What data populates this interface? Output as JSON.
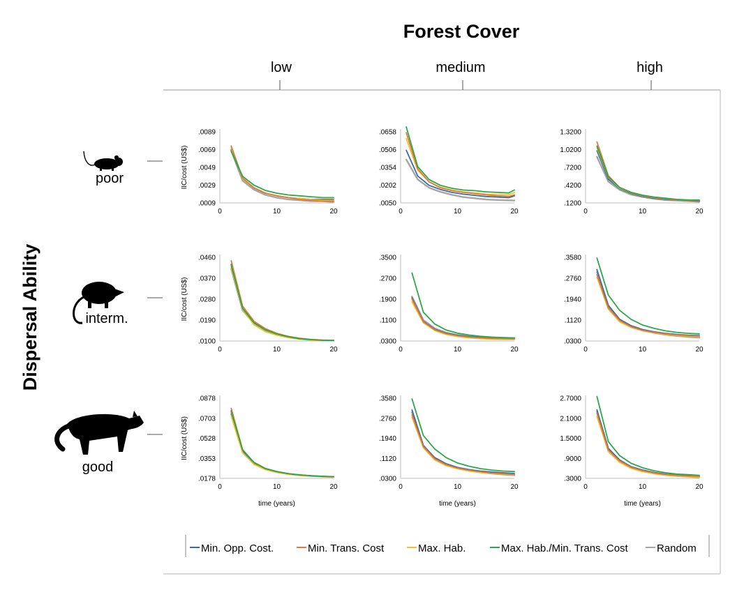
{
  "figure": {
    "title": "Forest Cover",
    "row_axis_title": "Dispersal Ability",
    "columns": [
      "low",
      "medium",
      "high"
    ],
    "rows": [
      "poor",
      "interm.",
      "good"
    ],
    "row_icons": [
      "mouse-silhouette-icon",
      "opossum-silhouette-icon",
      "cat-silhouette-icon"
    ]
  },
  "legend": {
    "items": [
      {
        "label": "Min. Opp. Cost.",
        "color": "#3a6aa8"
      },
      {
        "label": "Min. Trans. Cost",
        "color": "#e07a3a"
      },
      {
        "label": "Max. Hab.",
        "color": "#f2c12e"
      },
      {
        "label": "Max. Hab./Min. Trans. Cost",
        "color": "#2aa84a"
      },
      {
        "label": "Random",
        "color": "#a5a5a5"
      }
    ]
  },
  "chart_data": [
    {
      "type": "line",
      "row": "poor",
      "column": "low",
      "ylabel": "IIC/cost (US$)",
      "xlabel": "",
      "x_ticks": [
        "0",
        "10",
        "20"
      ],
      "xlim": [
        0,
        20
      ],
      "y_ticks": [
        ".0009",
        ".0029",
        ".0049",
        ".0069",
        ".0089"
      ],
      "y_tick_values": [
        0.0009,
        0.0029,
        0.0049,
        0.0069,
        0.0089
      ],
      "ylim": [
        0.0009,
        0.0089
      ],
      "x": [
        2,
        4,
        6,
        8,
        10,
        12,
        14,
        16,
        18,
        20
      ],
      "series": [
        {
          "name": "Min. Opp. Cost.",
          "values": [
            0.0069,
            0.0036,
            0.0026,
            0.002,
            0.0017,
            0.0015,
            0.0014,
            0.0013,
            0.0013,
            0.0013
          ]
        },
        {
          "name": "Min. Trans. Cost",
          "values": [
            0.0073,
            0.0037,
            0.0026,
            0.002,
            0.0017,
            0.0015,
            0.0013,
            0.0012,
            0.0011,
            0.0011
          ]
        },
        {
          "name": "Max. Hab.",
          "values": [
            0.0071,
            0.0036,
            0.0026,
            0.002,
            0.0017,
            0.0015,
            0.0014,
            0.0013,
            0.0012,
            0.0012
          ]
        },
        {
          "name": "Max. Hab./Min. Trans. Cost",
          "values": [
            0.0067,
            0.0039,
            0.0029,
            0.0023,
            0.002,
            0.0018,
            0.0017,
            0.0016,
            0.0015,
            0.0015
          ]
        },
        {
          "name": "Random",
          "values": [
            0.0068,
            0.0034,
            0.0024,
            0.0018,
            0.0015,
            0.0013,
            0.0012,
            0.0011,
            0.0011,
            0.001
          ]
        }
      ]
    },
    {
      "type": "line",
      "row": "poor",
      "column": "medium",
      "ylabel": "",
      "xlabel": "",
      "x_ticks": [
        "0",
        "10",
        "20"
      ],
      "xlim": [
        0,
        20
      ],
      "y_ticks": [
        ".0050",
        ".0202",
        ".0354",
        ".0506",
        ".0658"
      ],
      "y_tick_values": [
        0.005,
        0.0202,
        0.0354,
        0.0506,
        0.0658
      ],
      "ylim": [
        0.005,
        0.0658
      ],
      "x": [
        1,
        3,
        5,
        7,
        9,
        11,
        13,
        15,
        17,
        19,
        20
      ],
      "series": [
        {
          "name": "Min. Opp. Cost.",
          "values": [
            0.05,
            0.028,
            0.02,
            0.0165,
            0.014,
            0.0125,
            0.0115,
            0.0105,
            0.01,
            0.0095,
            0.011
          ]
        },
        {
          "name": "Min. Trans. Cost",
          "values": [
            0.065,
            0.034,
            0.023,
            0.018,
            0.0155,
            0.014,
            0.013,
            0.012,
            0.011,
            0.0105,
            0.012
          ]
        },
        {
          "name": "Max. Hab.",
          "values": [
            0.06,
            0.033,
            0.023,
            0.0185,
            0.016,
            0.0145,
            0.0135,
            0.0125,
            0.012,
            0.012,
            0.014
          ]
        },
        {
          "name": "Max. Hab./Min. Trans. Cost",
          "values": [
            0.07,
            0.036,
            0.025,
            0.02,
            0.0175,
            0.016,
            0.0155,
            0.0145,
            0.014,
            0.0135,
            0.016
          ]
        },
        {
          "name": "Random",
          "values": [
            0.042,
            0.025,
            0.018,
            0.0145,
            0.012,
            0.01,
            0.009,
            0.008,
            0.0075,
            0.0072,
            0.007
          ]
        }
      ]
    },
    {
      "type": "line",
      "row": "poor",
      "column": "high",
      "ylabel": "",
      "xlabel": "",
      "x_ticks": [
        "0",
        "10",
        "20"
      ],
      "xlim": [
        0,
        20
      ],
      "y_ticks": [
        ".1200",
        ".4200",
        ".7200",
        "1.0200",
        "1.3200"
      ],
      "y_tick_values": [
        0.12,
        0.42,
        0.72,
        1.02,
        1.32
      ],
      "ylim": [
        0.12,
        1.32
      ],
      "x": [
        2,
        4,
        6,
        8,
        10,
        12,
        14,
        16,
        18,
        20
      ],
      "series": [
        {
          "name": "Min. Opp. Cost.",
          "values": [
            1.0,
            0.52,
            0.36,
            0.28,
            0.23,
            0.2,
            0.18,
            0.17,
            0.16,
            0.15
          ]
        },
        {
          "name": "Min. Trans. Cost",
          "values": [
            1.15,
            0.58,
            0.38,
            0.29,
            0.24,
            0.21,
            0.19,
            0.17,
            0.16,
            0.16
          ]
        },
        {
          "name": "Max. Hab.",
          "values": [
            1.05,
            0.55,
            0.37,
            0.29,
            0.24,
            0.21,
            0.19,
            0.18,
            0.17,
            0.16
          ]
        },
        {
          "name": "Max. Hab./Min. Trans. Cost",
          "values": [
            1.08,
            0.56,
            0.38,
            0.3,
            0.25,
            0.22,
            0.2,
            0.18,
            0.17,
            0.17
          ]
        },
        {
          "name": "Random",
          "values": [
            0.9,
            0.48,
            0.34,
            0.26,
            0.22,
            0.19,
            0.17,
            0.16,
            0.15,
            0.14
          ]
        }
      ]
    },
    {
      "type": "line",
      "row": "interm.",
      "column": "low",
      "ylabel": "IIC/cost (US$)",
      "xlabel": "",
      "x_ticks": [
        "0",
        "10",
        "20"
      ],
      "xlim": [
        0,
        20
      ],
      "y_ticks": [
        ".0100",
        ".0190",
        ".0280",
        ".0370",
        ".0460"
      ],
      "y_tick_values": [
        0.01,
        0.019,
        0.028,
        0.037,
        0.046
      ],
      "ylim": [
        0.01,
        0.046
      ],
      "x": [
        2,
        4,
        6,
        8,
        10,
        12,
        14,
        16,
        18,
        20
      ],
      "series": [
        {
          "name": "Min. Opp. Cost.",
          "values": [
            0.043,
            0.024,
            0.018,
            0.015,
            0.013,
            0.0118,
            0.011,
            0.0106,
            0.0103,
            0.0102
          ]
        },
        {
          "name": "Min. Trans. Cost",
          "values": [
            0.0445,
            0.025,
            0.0185,
            0.0153,
            0.0133,
            0.012,
            0.0112,
            0.0107,
            0.0104,
            0.0103
          ]
        },
        {
          "name": "Max. Hab.",
          "values": [
            0.0415,
            0.0235,
            0.017,
            0.014,
            0.0125,
            0.0115,
            0.0108,
            0.0104,
            0.0102,
            0.0101
          ]
        },
        {
          "name": "Max. Hab./Min. Trans. Cost",
          "values": [
            0.0425,
            0.024,
            0.0178,
            0.0148,
            0.013,
            0.0118,
            0.011,
            0.0106,
            0.0103,
            0.0102
          ]
        },
        {
          "name": "Random",
          "values": [
            0.041,
            0.0232,
            0.0175,
            0.0146,
            0.0128,
            0.0117,
            0.0109,
            0.0105,
            0.0103,
            0.0102
          ]
        }
      ]
    },
    {
      "type": "line",
      "row": "interm.",
      "column": "medium",
      "ylabel": "",
      "xlabel": "",
      "x_ticks": [
        "0",
        "10",
        "20"
      ],
      "xlim": [
        0,
        20
      ],
      "y_ticks": [
        ".0300",
        ".1100",
        ".1900",
        ".2700",
        ".3500"
      ],
      "y_tick_values": [
        0.03,
        0.11,
        0.19,
        0.27,
        0.35
      ],
      "ylim": [
        0.03,
        0.35
      ],
      "x": [
        2,
        4,
        6,
        8,
        10,
        12,
        14,
        16,
        18,
        20
      ],
      "series": [
        {
          "name": "Min. Opp. Cost.",
          "values": [
            0.195,
            0.105,
            0.075,
            0.06,
            0.052,
            0.047,
            0.044,
            0.042,
            0.041,
            0.04
          ]
        },
        {
          "name": "Min. Trans. Cost",
          "values": [
            0.19,
            0.103,
            0.073,
            0.058,
            0.05,
            0.045,
            0.042,
            0.04,
            0.039,
            0.038
          ]
        },
        {
          "name": "Max. Hab.",
          "values": [
            0.18,
            0.1,
            0.07,
            0.055,
            0.047,
            0.042,
            0.039,
            0.037,
            0.036,
            0.036
          ]
        },
        {
          "name": "Max. Hab./Min. Trans. Cost",
          "values": [
            0.29,
            0.14,
            0.095,
            0.072,
            0.06,
            0.053,
            0.048,
            0.045,
            0.043,
            0.042
          ]
        },
        {
          "name": "Random",
          "values": [
            0.2,
            0.11,
            0.078,
            0.062,
            0.053,
            0.048,
            0.045,
            0.043,
            0.042,
            0.041
          ]
        }
      ]
    },
    {
      "type": "line",
      "row": "interm.",
      "column": "high",
      "ylabel": "",
      "xlabel": "",
      "x_ticks": [
        "0",
        "10",
        "20"
      ],
      "xlim": [
        0,
        20
      ],
      "y_ticks": [
        ".0300",
        ".1120",
        ".1940",
        ".2760",
        ".3580"
      ],
      "y_tick_values": [
        0.03,
        0.112,
        0.194,
        0.276,
        0.358
      ],
      "ylim": [
        0.03,
        0.358
      ],
      "x": [
        2,
        4,
        6,
        8,
        10,
        12,
        14,
        16,
        18,
        20
      ],
      "series": [
        {
          "name": "Min. Opp. Cost.",
          "values": [
            0.31,
            0.17,
            0.115,
            0.09,
            0.075,
            0.066,
            0.06,
            0.056,
            0.053,
            0.051
          ]
        },
        {
          "name": "Min. Trans. Cost",
          "values": [
            0.29,
            0.16,
            0.11,
            0.086,
            0.072,
            0.064,
            0.058,
            0.054,
            0.051,
            0.049
          ]
        },
        {
          "name": "Max. Hab.",
          "values": [
            0.28,
            0.155,
            0.105,
            0.083,
            0.07,
            0.062,
            0.056,
            0.052,
            0.049,
            0.047
          ]
        },
        {
          "name": "Max. Hab./Min. Trans. Cost",
          "values": [
            0.355,
            0.21,
            0.15,
            0.115,
            0.093,
            0.08,
            0.07,
            0.064,
            0.06,
            0.058
          ]
        },
        {
          "name": "Random",
          "values": [
            0.3,
            0.165,
            0.112,
            0.087,
            0.072,
            0.062,
            0.055,
            0.05,
            0.046,
            0.043
          ]
        }
      ]
    },
    {
      "type": "line",
      "row": "good",
      "column": "low",
      "ylabel": "IIC/cost (US$)",
      "xlabel": "time (years)",
      "x_ticks": [
        "0",
        "10",
        "20"
      ],
      "xlim": [
        0,
        20
      ],
      "y_ticks": [
        ".0178",
        ".0353",
        ".0528",
        ".0703",
        ".0878"
      ],
      "y_tick_values": [
        0.0178,
        0.0353,
        0.0528,
        0.0703,
        0.0878
      ],
      "ylim": [
        0.0178,
        0.0878
      ],
      "x": [
        2,
        4,
        6,
        8,
        10,
        12,
        14,
        16,
        18,
        20
      ],
      "series": [
        {
          "name": "Min. Opp. Cost.",
          "values": [
            0.077,
            0.042,
            0.031,
            0.026,
            0.0235,
            0.0218,
            0.0207,
            0.02,
            0.0195,
            0.0192
          ]
        },
        {
          "name": "Min. Trans. Cost",
          "values": [
            0.079,
            0.043,
            0.0315,
            0.0262,
            0.0236,
            0.0219,
            0.0208,
            0.02,
            0.0195,
            0.0192
          ]
        },
        {
          "name": "Max. Hab.",
          "values": [
            0.072,
            0.04,
            0.03,
            0.0255,
            0.023,
            0.0214,
            0.0204,
            0.0198,
            0.0194,
            0.0191
          ]
        },
        {
          "name": "Max. Hab./Min. Trans. Cost",
          "values": [
            0.076,
            0.0425,
            0.0318,
            0.0265,
            0.0238,
            0.022,
            0.0209,
            0.0201,
            0.0196,
            0.0193
          ]
        },
        {
          "name": "Random",
          "values": [
            0.074,
            0.041,
            0.0305,
            0.0258,
            0.0232,
            0.0216,
            0.0205,
            0.0199,
            0.0194,
            0.0191
          ]
        }
      ]
    },
    {
      "type": "line",
      "row": "good",
      "column": "medium",
      "ylabel": "",
      "xlabel": "time (years)",
      "x_ticks": [
        "0",
        "10",
        "20"
      ],
      "xlim": [
        0,
        20
      ],
      "y_ticks": [
        ".0300",
        ".1120",
        ".1940",
        ".2760",
        ".3580"
      ],
      "y_tick_values": [
        0.03,
        0.112,
        0.194,
        0.276,
        0.358
      ],
      "ylim": [
        0.03,
        0.358
      ],
      "x": [
        2,
        4,
        6,
        8,
        10,
        12,
        14,
        16,
        18,
        20
      ],
      "series": [
        {
          "name": "Min. Opp. Cost.",
          "values": [
            0.31,
            0.165,
            0.115,
            0.09,
            0.075,
            0.066,
            0.06,
            0.056,
            0.053,
            0.05
          ]
        },
        {
          "name": "Min. Trans. Cost",
          "values": [
            0.29,
            0.16,
            0.11,
            0.086,
            0.072,
            0.063,
            0.057,
            0.052,
            0.049,
            0.046
          ]
        },
        {
          "name": "Max. Hab.",
          "values": [
            0.28,
            0.155,
            0.105,
            0.082,
            0.069,
            0.06,
            0.054,
            0.05,
            0.047,
            0.045
          ]
        },
        {
          "name": "Max. Hab./Min. Trans. Cost",
          "values": [
            0.355,
            0.205,
            0.15,
            0.115,
            0.093,
            0.08,
            0.07,
            0.064,
            0.06,
            0.058
          ]
        },
        {
          "name": "Random",
          "values": [
            0.3,
            0.162,
            0.112,
            0.087,
            0.072,
            0.062,
            0.055,
            0.05,
            0.046,
            0.043
          ]
        }
      ]
    },
    {
      "type": "line",
      "row": "good",
      "column": "high",
      "ylabel": "",
      "xlabel": "time (years)",
      "x_ticks": [
        "0",
        "10",
        "20"
      ],
      "xlim": [
        0,
        20
      ],
      "y_ticks": [
        ".3000",
        ".9000",
        "1.5000",
        "2.1000",
        "2.7000"
      ],
      "y_tick_values": [
        0.3,
        0.9,
        1.5,
        2.1,
        2.7
      ],
      "ylim": [
        0.3,
        2.7
      ],
      "x": [
        2,
        4,
        6,
        8,
        10,
        12,
        14,
        16,
        18,
        20
      ],
      "series": [
        {
          "name": "Min. Opp. Cost.",
          "values": [
            2.35,
            1.2,
            0.85,
            0.65,
            0.55,
            0.48,
            0.43,
            0.4,
            0.38,
            0.37
          ]
        },
        {
          "name": "Min. Trans. Cost",
          "values": [
            2.25,
            1.15,
            0.82,
            0.63,
            0.53,
            0.46,
            0.42,
            0.39,
            0.37,
            0.36
          ]
        },
        {
          "name": "Max. Hab.",
          "values": [
            2.15,
            1.1,
            0.78,
            0.6,
            0.5,
            0.44,
            0.4,
            0.37,
            0.35,
            0.34
          ]
        },
        {
          "name": "Max. Hab./Min. Trans. Cost",
          "values": [
            2.75,
            1.4,
            0.98,
            0.75,
            0.62,
            0.53,
            0.47,
            0.43,
            0.41,
            0.39
          ]
        },
        {
          "name": "Random",
          "values": [
            2.3,
            1.18,
            0.83,
            0.63,
            0.52,
            0.45,
            0.4,
            0.37,
            0.35,
            0.33
          ]
        }
      ]
    }
  ]
}
